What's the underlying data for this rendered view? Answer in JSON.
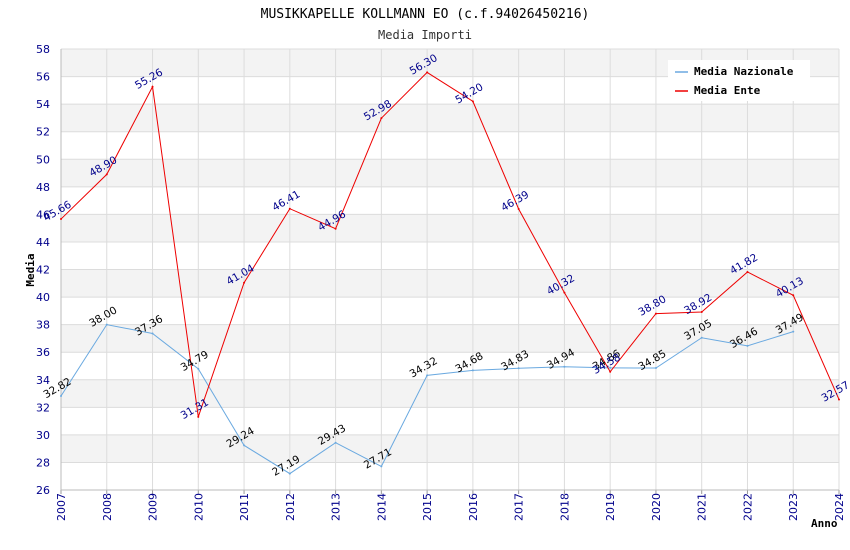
{
  "chart_data": {
    "type": "line",
    "title": "MUSIKKAPELLE KOLLMANN EO (c.f.94026450216)",
    "subtitle": "Media Importi",
    "xlabel": "Anno",
    "ylabel": "Media",
    "ylim": [
      26,
      58
    ],
    "yticks": [
      "26",
      "28",
      "30",
      "32",
      "34",
      "36",
      "38",
      "40",
      "42",
      "44",
      "46",
      "48",
      "50",
      "52",
      "54",
      "56",
      "58"
    ],
    "x": [
      "2007",
      "2008",
      "2009",
      "2010",
      "2011",
      "2012",
      "2013",
      "2014",
      "2015",
      "2016",
      "2017",
      "2018",
      "2019",
      "2020",
      "2021",
      "2022",
      "2023",
      "2024"
    ],
    "grid": true,
    "legend_position": "top-right",
    "series": [
      {
        "name": "Media Nazionale",
        "color": "#6aa9e0",
        "values": [
          32.82,
          38.0,
          37.36,
          34.79,
          29.24,
          27.19,
          29.43,
          27.71,
          34.32,
          34.68,
          34.83,
          34.94,
          34.86,
          34.85,
          37.05,
          36.46,
          37.49,
          null
        ],
        "labels": [
          "32.82",
          "38.00",
          "37.36",
          "34.79",
          "29.24",
          "27.19",
          "29.43",
          "27.71",
          "34.32",
          "34.68",
          "34.83",
          "34.94",
          "34.86",
          "34.85",
          "37.05",
          "36.46",
          "37.49",
          ""
        ]
      },
      {
        "name": "Media Ente",
        "color": "#ee0000",
        "values": [
          45.66,
          48.9,
          55.26,
          31.31,
          41.04,
          46.41,
          44.96,
          52.98,
          56.3,
          54.2,
          46.39,
          40.32,
          34.58,
          38.8,
          38.92,
          41.82,
          40.13,
          32.57
        ],
        "labels": [
          "45.66",
          "48.90",
          "55.26",
          "31.31",
          "41.04",
          "46.41",
          "44.96",
          "52.98",
          "56.30",
          "54.20",
          "46.39",
          "40.32",
          "34.58",
          "38.80",
          "38.92",
          "41.82",
          "40.13",
          "32.57"
        ]
      }
    ]
  }
}
